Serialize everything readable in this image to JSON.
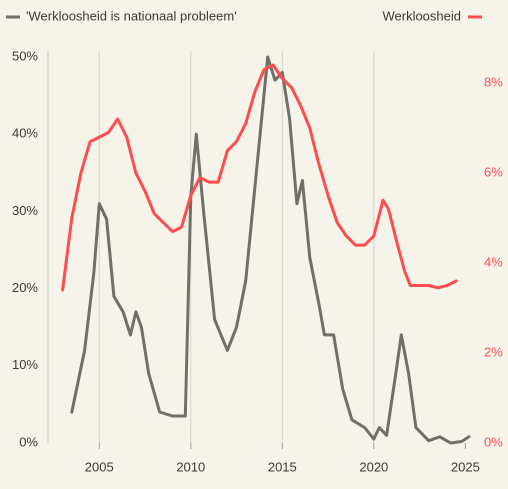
{
  "chart_data": {
    "type": "line",
    "series": [
      {
        "name": "'Werkloosheid is nationaal probleem'",
        "color": "#707069",
        "x": [
          2003.5,
          2004.2,
          2004.7,
          2005.0,
          2005.4,
          2005.8,
          2006.3,
          2006.7,
          2007.0,
          2007.3,
          2007.7,
          2008.3,
          2009.0,
          2009.7,
          2010.0,
          2010.3,
          2010.7,
          2011.3,
          2012.0,
          2012.5,
          2013.0,
          2013.5,
          2014.2,
          2014.6,
          2015.0,
          2015.4,
          2015.8,
          2016.1,
          2016.5,
          2017.0,
          2017.3,
          2017.8,
          2018.3,
          2018.8,
          2019.5,
          2020.0,
          2020.3,
          2020.7,
          2021.2,
          2021.5,
          2021.9,
          2022.3,
          2023.0,
          2023.6,
          2024.2,
          2024.8,
          2025.2
        ],
        "values": [
          4,
          12,
          22,
          31,
          29,
          19,
          17,
          14,
          17,
          15,
          9,
          4,
          3.5,
          3.5,
          32,
          40,
          30,
          16,
          12,
          15,
          21,
          33,
          50,
          47,
          48,
          42,
          31,
          34,
          24,
          18,
          14,
          14,
          7,
          3,
          2,
          0.5,
          2,
          1,
          9,
          14,
          9,
          2,
          0.3,
          0.8,
          0,
          0.2,
          0.8
        ]
      },
      {
        "name": "Werkloosheid",
        "color": "#ff4d4d",
        "axis": "y2",
        "x": [
          2003.0,
          2003.5,
          2004.0,
          2004.5,
          2005.0,
          2005.5,
          2006.0,
          2006.5,
          2007.0,
          2007.5,
          2008.0,
          2008.5,
          2009.0,
          2009.5,
          2010.0,
          2010.5,
          2011.0,
          2011.5,
          2012.0,
          2012.5,
          2013.0,
          2013.5,
          2014.0,
          2014.5,
          2015.0,
          2015.5,
          2016.0,
          2016.5,
          2017.0,
          2017.5,
          2018.0,
          2018.5,
          2019.0,
          2019.5,
          2020.0,
          2020.5,
          2020.8,
          2021.3,
          2021.7,
          2022.0,
          2023.0,
          2023.5,
          2024.0,
          2024.5
        ],
        "values": [
          3.4,
          5,
          6,
          6.7,
          6.8,
          6.9,
          7.2,
          6.8,
          6.0,
          5.6,
          5.1,
          4.9,
          4.7,
          4.8,
          5.5,
          5.9,
          5.8,
          5.8,
          6.5,
          6.7,
          7.1,
          7.8,
          8.3,
          8.4,
          8.1,
          7.9,
          7.5,
          7.0,
          6.2,
          5.5,
          4.9,
          4.6,
          4.4,
          4.4,
          4.6,
          5.4,
          5.2,
          4.4,
          3.8,
          3.5,
          3.5,
          3.45,
          3.5,
          3.6
        ]
      }
    ],
    "xlim": [
      2002.2,
      2025.8
    ],
    "xticks": [
      2005,
      2010,
      2015,
      2020,
      2025
    ],
    "ylim": [
      0,
      50
    ],
    "yticks": [
      {
        "value": 0,
        "label": "0%"
      },
      {
        "value": 10,
        "label": "10%"
      },
      {
        "value": 20,
        "label": "20%"
      },
      {
        "value": 30,
        "label": "30%"
      },
      {
        "value": 40,
        "label": "40%"
      },
      {
        "value": 50,
        "label": "50%"
      }
    ],
    "y2lim": [
      0,
      8.58
    ],
    "y2ticks": [
      {
        "value": 0,
        "label": "0%"
      },
      {
        "value": 2,
        "label": "2%"
      },
      {
        "value": 4,
        "label": "4%"
      },
      {
        "value": 6,
        "label": "6%"
      },
      {
        "value": 8,
        "label": "8%"
      }
    ],
    "grid": "x"
  }
}
